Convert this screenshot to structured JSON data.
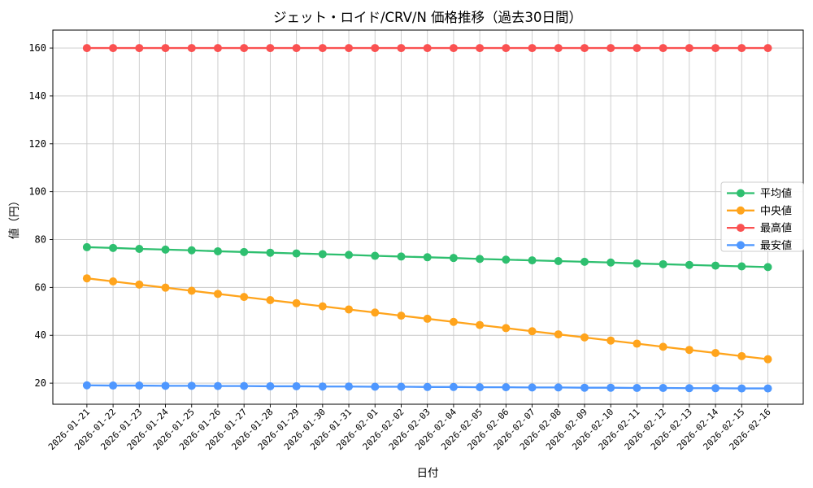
{
  "figure": {
    "background": "#ffffff",
    "grid_color": "#c9c9c9",
    "spine_color": "#000000"
  },
  "chart_data": {
    "type": "line",
    "title": "ジェット・ロイド/CRV/N 価格推移（過去30日間）",
    "xlabel": "日付",
    "ylabel": "値（円）",
    "grid": true,
    "legend_position": "center right",
    "xlim": [
      -1.3,
      27.35
    ],
    "ylim": [
      11.2,
      167.5
    ],
    "yticks": [
      20,
      40,
      60,
      80,
      100,
      120,
      140,
      160
    ],
    "categories": [
      "2026-01-21",
      "2026-01-22",
      "2026-01-23",
      "2026-01-24",
      "2026-01-25",
      "2026-01-26",
      "2026-01-27",
      "2026-01-28",
      "2026-01-29",
      "2026-01-30",
      "2026-01-31",
      "2026-02-01",
      "2026-02-02",
      "2026-02-03",
      "2026-02-04",
      "2026-02-05",
      "2026-02-06",
      "2026-02-07",
      "2026-02-08",
      "2026-02-09",
      "2026-02-10",
      "2026-02-11",
      "2026-02-12",
      "2026-02-13",
      "2026-02-14",
      "2026-02-15",
      "2026-02-16"
    ],
    "series": [
      {
        "name": "平均値",
        "color": "#2ebf6f",
        "values": [
          76.8,
          76.5,
          76.1,
          75.8,
          75.5,
          75.1,
          74.8,
          74.5,
          74.2,
          73.9,
          73.6,
          73.2,
          72.9,
          72.6,
          72.3,
          71.9,
          71.6,
          71.3,
          71.0,
          70.7,
          70.4,
          70.0,
          69.7,
          69.4,
          69.1,
          68.8,
          68.5
        ]
      },
      {
        "name": "中央値",
        "color": "#ffa41c",
        "values": [
          63.8,
          62.5,
          61.2,
          59.9,
          58.6,
          57.3,
          56.0,
          54.7,
          53.4,
          52.1,
          50.8,
          49.5,
          48.2,
          46.9,
          45.6,
          44.3,
          43.0,
          41.7,
          40.4,
          39.1,
          37.8,
          36.5,
          35.2,
          33.9,
          32.6,
          31.3,
          30.0
        ]
      },
      {
        "name": "最高値",
        "color": "#fa5151",
        "values": [
          160,
          160,
          160,
          160,
          160,
          160,
          160,
          160,
          160,
          160,
          160,
          160,
          160,
          160,
          160,
          160,
          160,
          160,
          160,
          160,
          160,
          160,
          160,
          160,
          160,
          160,
          160
        ]
      },
      {
        "name": "最安値",
        "color": "#4e97ff",
        "values": [
          19.1,
          19.0,
          19.0,
          18.9,
          18.9,
          18.8,
          18.8,
          18.7,
          18.7,
          18.6,
          18.6,
          18.5,
          18.5,
          18.4,
          18.4,
          18.3,
          18.3,
          18.2,
          18.2,
          18.1,
          18.1,
          18.0,
          18.0,
          17.9,
          17.9,
          17.8,
          17.8
        ]
      }
    ]
  }
}
